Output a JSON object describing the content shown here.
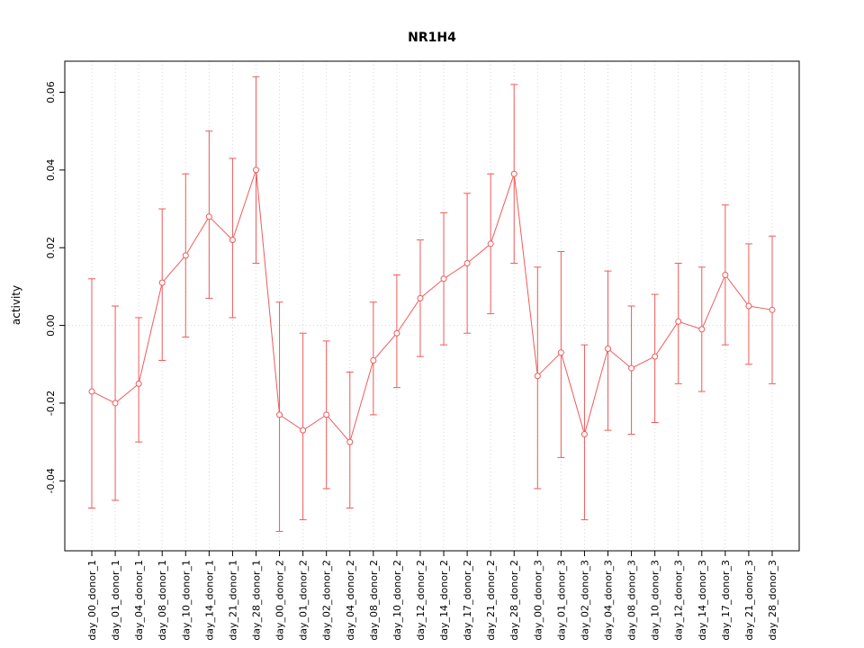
{
  "chart_data": {
    "type": "line",
    "title": "NR1H4",
    "xlabel": "",
    "ylabel": "activity",
    "ylim": [
      -0.058,
      0.068
    ],
    "yticks": [
      "-0.04",
      "-0.02",
      "0.00",
      "0.02",
      "0.04",
      "0.06"
    ],
    "legend": "none",
    "grid": "dotted vertical gridline at each category; dotted horizontal reference line at y=0",
    "marker": "open-circle",
    "error_bars": true,
    "colors": {
      "accent": "#F05A5A",
      "grid": "#D8D8D8",
      "axis": "#000000",
      "background": "#FFFFFF"
    },
    "categories": [
      "day_00_donor_1",
      "day_01_donor_1",
      "day_04_donor_1",
      "day_08_donor_1",
      "day_10_donor_1",
      "day_14_donor_1",
      "day_21_donor_1",
      "day_28_donor_1",
      "day_00_donor_2",
      "day_01_donor_2",
      "day_02_donor_2",
      "day_04_donor_2",
      "day_08_donor_2",
      "day_10_donor_2",
      "day_12_donor_2",
      "day_14_donor_2",
      "day_17_donor_2",
      "day_21_donor_2",
      "day_28_donor_2",
      "day_00_donor_3",
      "day_01_donor_3",
      "day_02_donor_3",
      "day_04_donor_3",
      "day_08_donor_3",
      "day_10_donor_3",
      "day_12_donor_3",
      "day_14_donor_3",
      "day_17_donor_3",
      "day_21_donor_3",
      "day_28_donor_3"
    ],
    "series": [
      {
        "name": "activity",
        "values": [
          -0.017,
          -0.02,
          -0.015,
          0.011,
          0.018,
          0.028,
          0.022,
          0.04,
          -0.023,
          -0.027,
          -0.023,
          -0.03,
          -0.009,
          -0.002,
          0.007,
          0.012,
          0.016,
          0.021,
          0.039,
          -0.013,
          -0.007,
          -0.028,
          -0.006,
          -0.011,
          -0.008,
          0.001,
          -0.001,
          0.013,
          0.005,
          0.004
        ],
        "lower": [
          -0.047,
          -0.045,
          -0.03,
          -0.009,
          -0.003,
          0.007,
          0.002,
          0.016,
          -0.053,
          -0.05,
          -0.042,
          -0.047,
          -0.023,
          -0.016,
          -0.008,
          -0.005,
          -0.002,
          0.003,
          0.016,
          -0.042,
          -0.034,
          -0.05,
          -0.027,
          -0.028,
          -0.025,
          -0.015,
          -0.017,
          -0.005,
          -0.01,
          -0.015
        ],
        "upper": [
          0.012,
          0.005,
          0.002,
          0.03,
          0.039,
          0.05,
          0.043,
          0.064,
          0.006,
          -0.002,
          -0.004,
          -0.012,
          0.006,
          0.013,
          0.022,
          0.029,
          0.034,
          0.039,
          0.062,
          0.015,
          0.019,
          -0.005,
          0.014,
          0.005,
          0.008,
          0.016,
          0.015,
          0.031,
          0.021,
          0.023
        ]
      }
    ]
  }
}
